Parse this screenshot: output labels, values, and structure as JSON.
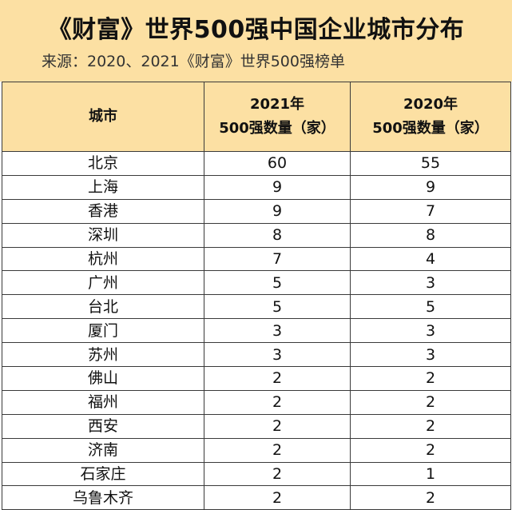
{
  "header": {
    "title": "《财富》世界500强中国企业城市分布",
    "subtitle": "来源：2020、2021《财富》世界500强榜单"
  },
  "table": {
    "columns": [
      {
        "line1": "城市",
        "line2": ""
      },
      {
        "line1": "2021年",
        "line2": "500强数量（家）"
      },
      {
        "line1": "2020年",
        "line2": "500强数量（家）"
      }
    ],
    "rows": [
      {
        "city": "北京",
        "y2021": "60",
        "y2020": "55"
      },
      {
        "city": "上海",
        "y2021": "9",
        "y2020": "9"
      },
      {
        "city": "香港",
        "y2021": "9",
        "y2020": "7"
      },
      {
        "city": "深圳",
        "y2021": "8",
        "y2020": "8"
      },
      {
        "city": "杭州",
        "y2021": "7",
        "y2020": "4"
      },
      {
        "city": "广州",
        "y2021": "5",
        "y2020": "3"
      },
      {
        "city": "台北",
        "y2021": "5",
        "y2020": "5"
      },
      {
        "city": "厦门",
        "y2021": "3",
        "y2020": "3"
      },
      {
        "city": "苏州",
        "y2021": "3",
        "y2020": "3"
      },
      {
        "city": "佛山",
        "y2021": "2",
        "y2020": "2"
      },
      {
        "city": "福州",
        "y2021": "2",
        "y2020": "2"
      },
      {
        "city": "西安",
        "y2021": "2",
        "y2020": "2"
      },
      {
        "city": "济南",
        "y2021": "2",
        "y2020": "2"
      },
      {
        "city": "石家庄",
        "y2021": "2",
        "y2020": "1"
      },
      {
        "city": "乌鲁木齐",
        "y2021": "2",
        "y2020": "2"
      }
    ]
  },
  "colors": {
    "header_bg": "#fce0a3",
    "border": "#3a3a3a"
  }
}
